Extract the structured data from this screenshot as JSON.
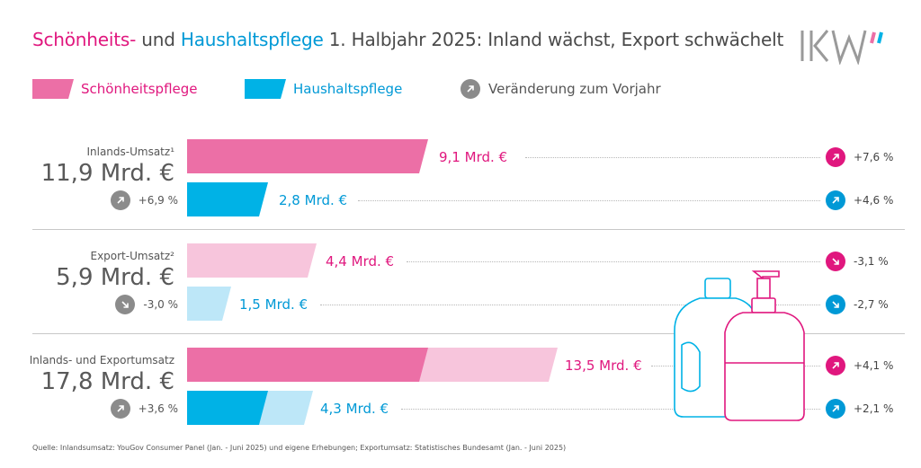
{
  "title": {
    "part1": "Schönheits-",
    "part2": " und ",
    "part3": "Haushaltspflege",
    "part4": " 1. Halbjahr 2025: Inland wächst, Export schwächelt"
  },
  "logo": {
    "text": "IKW"
  },
  "legend": {
    "beauty": "Schönheitspflege",
    "household": "Haushaltspflege",
    "change": "Veränderung zum Vorjahr"
  },
  "colors": {
    "beauty": "#ec6fa6",
    "beauty_light": "#f7c5dc",
    "beauty_text": "#e0177e",
    "household": "#00b2e6",
    "household_light": "#bde7f8",
    "household_text": "#0099d6",
    "neutral": "#8b8b8b"
  },
  "groups": [
    {
      "label": "Inlands-Umsatz¹",
      "total": "11,9 Mrd. €",
      "change": {
        "text": "+6,9 %",
        "dir": "up"
      },
      "rows": [
        {
          "label": "9,1 Mrd. €",
          "change": "+7,6 %",
          "dir": "up"
        },
        {
          "label": "2,8 Mrd. €",
          "change": "+4,6 %",
          "dir": "up"
        }
      ]
    },
    {
      "label": "Export-Umsatz²",
      "total": "5,9 Mrd. €",
      "change": {
        "text": "-3,0 %",
        "dir": "down"
      },
      "rows": [
        {
          "label": "4,4 Mrd. €",
          "change": "-3,1 %",
          "dir": "down"
        },
        {
          "label": "1,5 Mrd. €",
          "change": "-2,7 %",
          "dir": "down"
        }
      ]
    },
    {
      "label": "Inlands- und Exportumsatz",
      "total": "17,8 Mrd. €",
      "change": {
        "text": "+3,6 %",
        "dir": "up"
      },
      "rows": [
        {
          "label": "13,5 Mrd. €",
          "change": "+4,1 %",
          "dir": "up"
        },
        {
          "label": "4,3 Mrd. €",
          "change": "+2,1 %",
          "dir": "up"
        }
      ]
    }
  ],
  "source": "Quelle: Inlandsumsatz: YouGov Consumer Panel (Jan. - Juni 2025) und eigene Erhebungen; Exportumsatz: Statistisches Bundesamt (Jan. - Juni 2025)",
  "chart_data": {
    "type": "bar",
    "orientation": "horizontal",
    "unit": "Mrd. €",
    "categories": [
      "Inlands-Umsatz¹",
      "Export-Umsatz²",
      "Inlands- und Exportumsatz"
    ],
    "totals": [
      11.9,
      5.9,
      17.8
    ],
    "totals_change_pct": [
      6.9,
      -3.0,
      3.6
    ],
    "series": [
      {
        "name": "Schönheitspflege",
        "values": [
          9.1,
          4.4,
          13.5
        ],
        "change_pct": [
          7.6,
          -3.1,
          4.1
        ],
        "stack_parts_last": [
          9.1,
          4.4
        ]
      },
      {
        "name": "Haushaltspflege",
        "values": [
          2.8,
          1.5,
          4.3
        ],
        "change_pct": [
          4.6,
          -2.7,
          2.1
        ],
        "stack_parts_last": [
          2.8,
          1.5
        ]
      }
    ],
    "legend_position": "top",
    "grid": false
  }
}
